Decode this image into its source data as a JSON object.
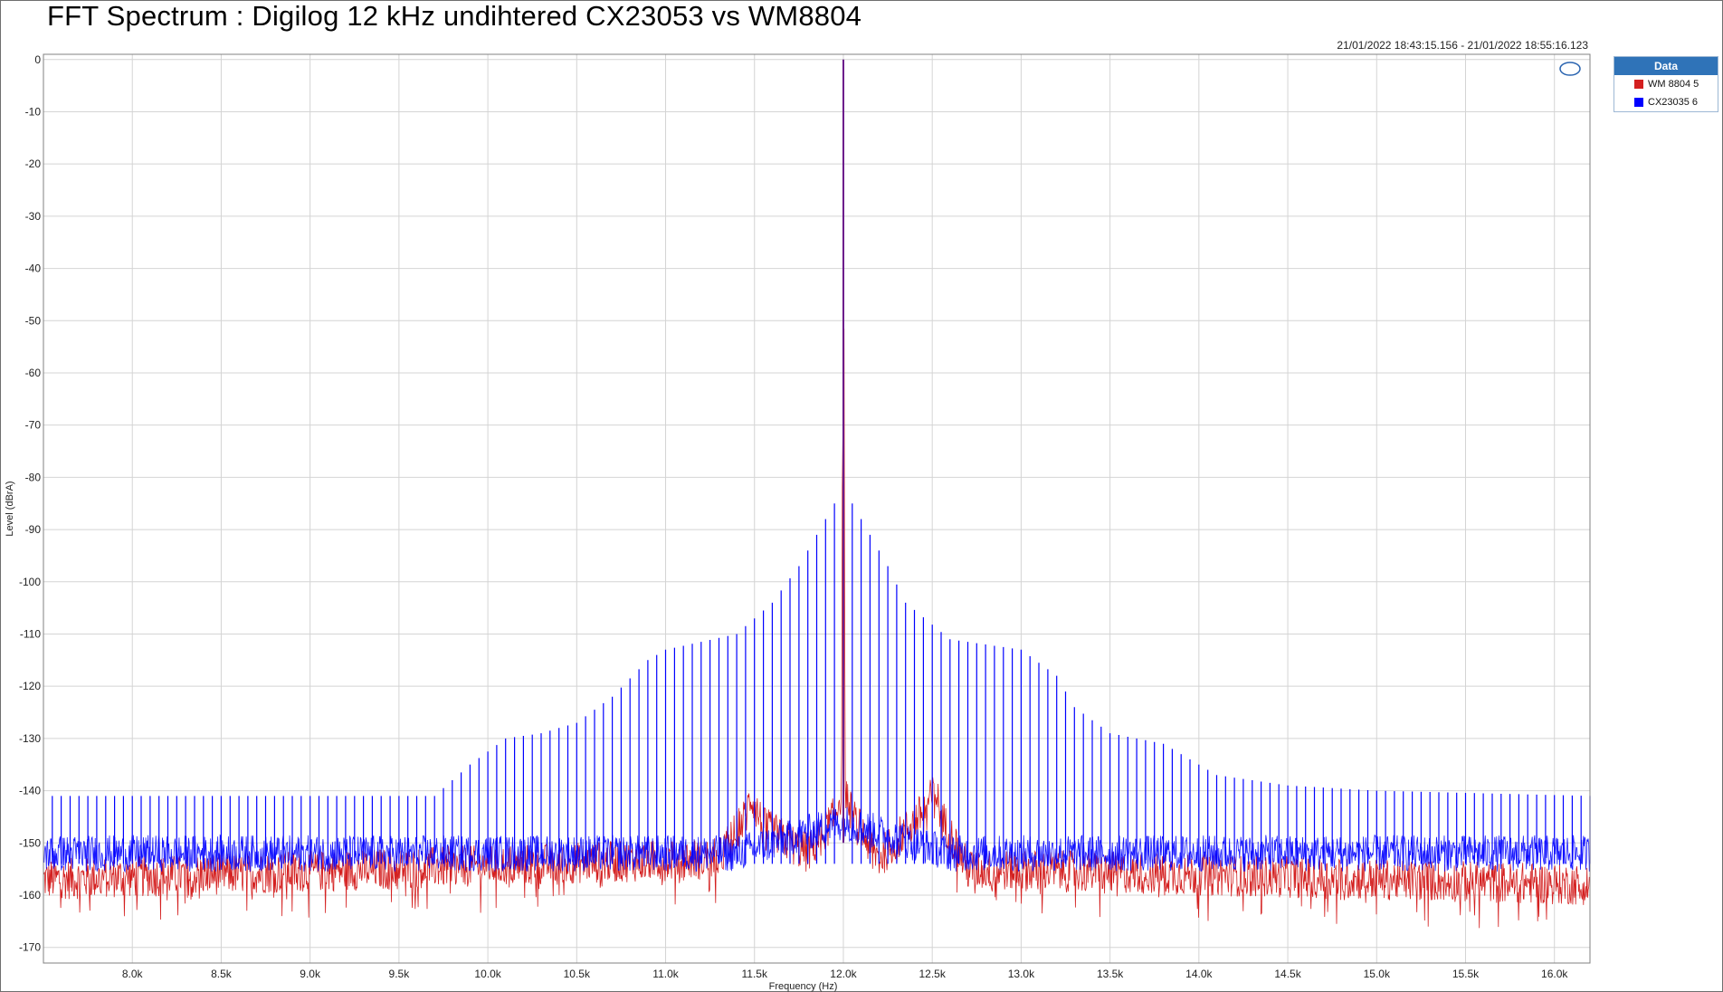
{
  "title": "FFT Spectrum : Digilog 12 kHz undihtered  CX23053 vs WM8804",
  "timestamp": "21/01/2022 18:43:15.156 - 21/01/2022 18:55:16.123",
  "legend": {
    "header": "Data",
    "items": [
      {
        "label": "WM 8804 5",
        "color": "#d42020"
      },
      {
        "label": "CX23035 6",
        "color": "#0000ff"
      }
    ]
  },
  "logo_text": "AP",
  "chart_data": {
    "type": "line",
    "xlabel": "Frequency (Hz)",
    "ylabel": "Level (dBrA)",
    "xlim": [
      7500,
      16200
    ],
    "ylim": [
      -173,
      1
    ],
    "x_ticks": [
      {
        "value": 8000,
        "label": "8.0k"
      },
      {
        "value": 8500,
        "label": "8.5k"
      },
      {
        "value": 9000,
        "label": "9.0k"
      },
      {
        "value": 9500,
        "label": "9.5k"
      },
      {
        "value": 10000,
        "label": "10.0k"
      },
      {
        "value": 10500,
        "label": "10.5k"
      },
      {
        "value": 11000,
        "label": "11.0k"
      },
      {
        "value": 11500,
        "label": "11.5k"
      },
      {
        "value": 12000,
        "label": "12.0k"
      },
      {
        "value": 12500,
        "label": "12.5k"
      },
      {
        "value": 13000,
        "label": "13.0k"
      },
      {
        "value": 13500,
        "label": "13.5k"
      },
      {
        "value": 14000,
        "label": "14.0k"
      },
      {
        "value": 14500,
        "label": "14.5k"
      },
      {
        "value": 15000,
        "label": "15.0k"
      },
      {
        "value": 15500,
        "label": "15.5k"
      },
      {
        "value": 16000,
        "label": "16.0k"
      }
    ],
    "y_ticks": [
      {
        "value": 0,
        "label": "0"
      },
      {
        "value": -10,
        "label": "-10"
      },
      {
        "value": -20,
        "label": "-20"
      },
      {
        "value": -30,
        "label": "-30"
      },
      {
        "value": -40,
        "label": "-40"
      },
      {
        "value": -50,
        "label": "-50"
      },
      {
        "value": -60,
        "label": "-60"
      },
      {
        "value": -70,
        "label": "-70"
      },
      {
        "value": -80,
        "label": "-80"
      },
      {
        "value": -90,
        "label": "-90"
      },
      {
        "value": -100,
        "label": "-100"
      },
      {
        "value": -110,
        "label": "-110"
      },
      {
        "value": -120,
        "label": "-120"
      },
      {
        "value": -130,
        "label": "-130"
      },
      {
        "value": -140,
        "label": "-140"
      },
      {
        "value": -150,
        "label": "-150"
      },
      {
        "value": -160,
        "label": "-160"
      },
      {
        "value": -170,
        "label": "-170"
      }
    ],
    "grid": true,
    "series": [
      {
        "name": "WM 8804 5",
        "color": "#d42020",
        "noise_floor_db": -157,
        "x": [
          7500,
          11300,
          11450,
          11480,
          11550,
          11800,
          11950,
          11990,
          12000,
          12010,
          12050,
          12200,
          12450,
          12520,
          12550,
          12700,
          16200
        ],
        "y": [
          -157,
          -153,
          -145,
          -141,
          -147,
          -152,
          -145,
          -140,
          0,
          -140,
          -145,
          -153,
          -144,
          -140,
          -145,
          -155,
          -158
        ]
      },
      {
        "name": "CX23035 6",
        "color": "#0000ff",
        "noise_floor_db": -152,
        "tone_spacing_hz": 50,
        "fundamental": {
          "x": 12000,
          "y": 0
        },
        "spur_envelope": {
          "x": [
            7500,
            9700,
            9900,
            10100,
            10300,
            10500,
            10700,
            10900,
            11000,
            11400,
            11600,
            11750,
            11850,
            11950,
            12050,
            12150,
            12250,
            12350,
            12600,
            13000,
            13200,
            13300,
            13500,
            13800,
            14100,
            14500,
            15000,
            16200
          ],
          "y": [
            -141,
            -141,
            -135,
            -130,
            -129,
            -127,
            -122,
            -115,
            -113,
            -110,
            -104,
            -97,
            -91,
            -85,
            -85,
            -91,
            -97,
            -104,
            -111,
            -113,
            -118,
            -124,
            -129,
            -131,
            -137,
            -139,
            -140,
            -141
          ]
        }
      }
    ]
  }
}
